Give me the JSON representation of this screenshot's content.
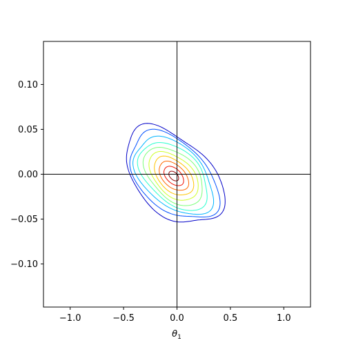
{
  "chart_data": {
    "type": "contour",
    "title": "",
    "xlabel": "θ1",
    "ylabel": "",
    "xlim": [
      -1.25,
      1.25
    ],
    "ylim": [
      -0.148,
      0.148
    ],
    "xticks": [
      -1.0,
      -0.5,
      0.0,
      0.5,
      1.0
    ],
    "xtick_labels": [
      "−1.0",
      "−0.5",
      "0.0",
      "0.5",
      "1.0"
    ],
    "yticks": [
      -0.1,
      -0.05,
      0.0,
      0.05,
      0.1
    ],
    "ytick_labels": [
      "−0.10",
      "−0.05",
      "0.00",
      "0.05",
      "0.10"
    ],
    "reference_lines": {
      "vertical_x": 0.0,
      "horizontal_y": 0.0,
      "color": "#000000"
    },
    "grid": false,
    "colormap": "jet",
    "distribution": {
      "center": [
        -0.03,
        -0.002
      ],
      "major_axis_direction": [
        0.42,
        -0.042
      ],
      "minor_axis_direction": [
        0.19,
        0.034
      ]
    },
    "contour_levels": [
      {
        "level": 1,
        "color": "#0000c8",
        "x_extent": [
          -0.7,
          0.77
        ],
        "y_extent": [
          -0.083,
          0.085
        ]
      },
      {
        "level": 2,
        "color": "#0050ff",
        "x_extent": [
          -0.52,
          0.6
        ],
        "y_extent": [
          -0.066,
          0.071
        ]
      },
      {
        "level": 3,
        "color": "#00b4ff",
        "x_extent": [
          -0.47,
          0.52
        ],
        "y_extent": [
          -0.059,
          0.055
        ]
      },
      {
        "level": 4,
        "color": "#29ffce",
        "x_extent": [
          -0.42,
          0.45
        ],
        "y_extent": [
          -0.052,
          0.048
        ]
      },
      {
        "level": 5,
        "color": "#7dff7a",
        "x_extent": [
          -0.37,
          0.39
        ],
        "y_extent": [
          -0.046,
          0.041
        ]
      },
      {
        "level": 6,
        "color": "#ceff29",
        "x_extent": [
          -0.32,
          0.33
        ],
        "y_extent": [
          -0.04,
          0.035
        ]
      },
      {
        "level": 7,
        "color": "#ffc400",
        "x_extent": [
          -0.27,
          0.28
        ],
        "y_extent": [
          -0.033,
          0.029
        ]
      },
      {
        "level": 8,
        "color": "#ff6800",
        "x_extent": [
          -0.22,
          0.23
        ],
        "y_extent": [
          -0.026,
          0.022
        ]
      },
      {
        "level": 9,
        "color": "#f01000",
        "x_extent": [
          -0.17,
          0.18
        ],
        "y_extent": [
          -0.019,
          0.016
        ]
      },
      {
        "level": 10,
        "color": "#900000",
        "x_extent": [
          -0.11,
          0.13
        ],
        "y_extent": [
          -0.012,
          0.009
        ]
      }
    ]
  }
}
